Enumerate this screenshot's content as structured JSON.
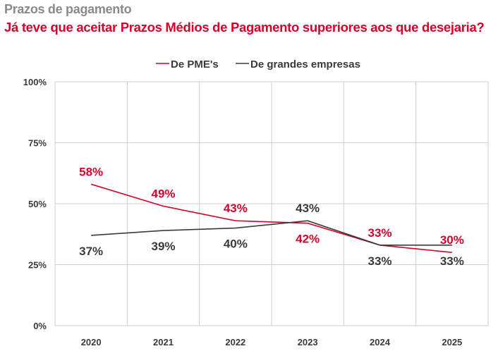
{
  "chart_data": {
    "type": "line",
    "title": "Prazos de pagamento",
    "subtitle": "Já teve que aceitar Prazos Médios de Pagamento superiores aos que desejaria?",
    "categories": [
      "2020",
      "2021",
      "2022",
      "2023",
      "2024",
      "2025"
    ],
    "series": [
      {
        "name": "De PME's",
        "color": "#d6002a",
        "values": [
          58,
          49,
          43,
          42,
          33,
          30
        ],
        "labels": [
          "58%",
          "49%",
          "43%",
          "42%",
          "33%",
          "30%"
        ]
      },
      {
        "name": "De grandes empresas",
        "color": "#3a3a3a",
        "values": [
          37,
          39,
          40,
          43,
          33,
          33
        ],
        "labels": [
          "37%",
          "39%",
          "40%",
          "43%",
          "33%",
          "33%"
        ]
      }
    ],
    "ylim": [
      0,
      100
    ],
    "yticks": [
      "0%",
      "25%",
      "50%",
      "75%",
      "100%"
    ],
    "ytick_values": [
      0,
      25,
      50,
      75,
      100
    ],
    "grid": true,
    "legend": "top-center"
  }
}
